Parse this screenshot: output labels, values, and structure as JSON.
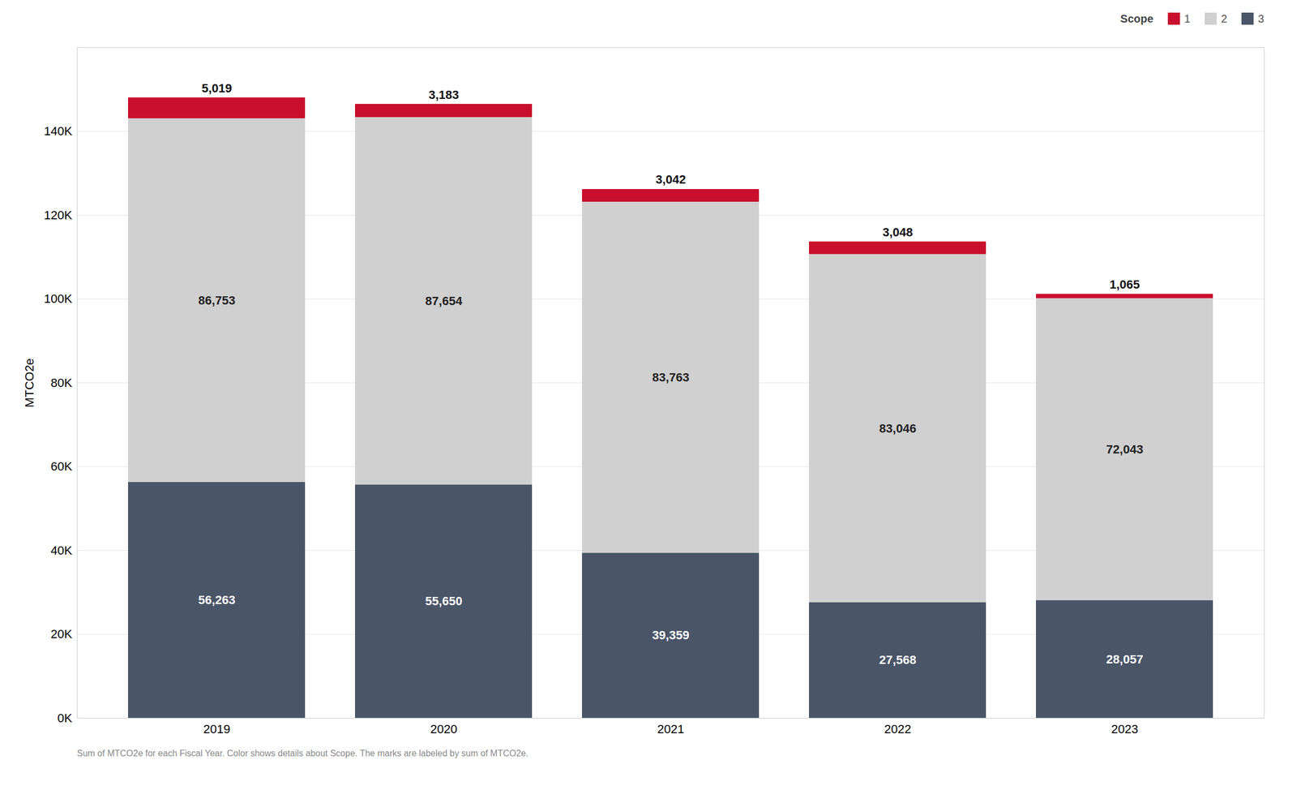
{
  "chart_data": {
    "type": "bar",
    "stacked": true,
    "categories": [
      "2019",
      "2020",
      "2021",
      "2022",
      "2023"
    ],
    "series": [
      {
        "name": "1",
        "color": "#C8102E",
        "values": [
          5019,
          3183,
          3042,
          3048,
          1065
        ],
        "value_labels": [
          "5,019",
          "3,183",
          "3,042",
          "3,048",
          "1,065"
        ]
      },
      {
        "name": "2",
        "color": "#D0D0D0",
        "values": [
          86753,
          87654,
          83763,
          83046,
          72043
        ],
        "value_labels": [
          "86,753",
          "87,654",
          "83,763",
          "83,046",
          "72,043"
        ]
      },
      {
        "name": "3",
        "color": "#4A5568",
        "values": [
          56263,
          55650,
          39359,
          27568,
          28057
        ],
        "value_labels": [
          "56,263",
          "55,650",
          "39,359",
          "27,568",
          "28,057"
        ]
      }
    ],
    "ylabel": "MTCO2e",
    "legend_title": "Scope",
    "caption": "Sum of MTCO2e for each Fiscal Year.  Color shows details about Scope.  The marks are labeled by sum of MTCO2e.",
    "ylim": [
      0,
      160000
    ],
    "yticks": [
      {
        "value": 0,
        "label": "0K"
      },
      {
        "value": 20000,
        "label": "20K"
      },
      {
        "value": 40000,
        "label": "40K"
      },
      {
        "value": 60000,
        "label": "60K"
      },
      {
        "value": 80000,
        "label": "80K"
      },
      {
        "value": 100000,
        "label": "100K"
      },
      {
        "value": 120000,
        "label": "120K"
      },
      {
        "value": 140000,
        "label": "140K"
      }
    ],
    "grid": true,
    "legend": "upper right",
    "data_labels": true
  }
}
